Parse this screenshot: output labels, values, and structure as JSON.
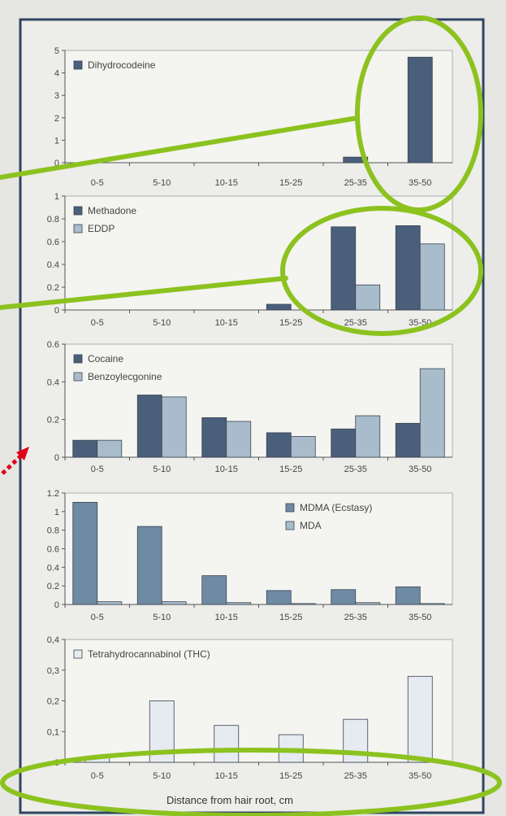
{
  "figure": {
    "xlabel": "Distance from hair root, cm"
  },
  "colors": {
    "page_bg": "#e6e6e2",
    "panel_bg": "#f4f4f1",
    "dark_bar": "#4a5f7a",
    "mid_bar": "#6f8aa3",
    "light_bar": "#a9bccc",
    "thc_bar": "#e6eaf1",
    "highlight": "#8cc21f",
    "arrow": "#e0001a"
  },
  "chart_data": [
    {
      "type": "bar",
      "categories": [
        "0-5",
        "5-10",
        "10-15",
        "15-25",
        "25-35",
        "35-50"
      ],
      "series": [
        {
          "name": "Dihydrocodeine",
          "values": [
            0,
            0,
            0,
            0,
            0.25,
            4.7
          ]
        }
      ],
      "ylim": [
        0,
        5
      ],
      "yticks": [
        "0",
        "1",
        "2",
        "3",
        "4",
        "5"
      ],
      "legend": "top-left",
      "grid": false
    },
    {
      "type": "bar",
      "categories": [
        "0-5",
        "5-10",
        "10-15",
        "15-25",
        "25-35",
        "35-50"
      ],
      "series": [
        {
          "name": "Methadone",
          "values": [
            0,
            0,
            0,
            0.05,
            0.73,
            0.74
          ]
        },
        {
          "name": "EDDP",
          "values": [
            0,
            0,
            0,
            0,
            0.22,
            0.58
          ]
        }
      ],
      "ylim": [
        0,
        1
      ],
      "yticks": [
        "0",
        "0.2",
        "0.4",
        "0.6",
        "0.8",
        "1"
      ],
      "legend": "top-left",
      "grid": false
    },
    {
      "type": "bar",
      "categories": [
        "0-5",
        "5-10",
        "10-15",
        "15-25",
        "25-35",
        "35-50"
      ],
      "series": [
        {
          "name": "Cocaine",
          "values": [
            0.09,
            0.33,
            0.21,
            0.13,
            0.15,
            0.18
          ]
        },
        {
          "name": "Benzoylecgonine",
          "values": [
            0.09,
            0.32,
            0.19,
            0.11,
            0.22,
            0.47
          ]
        }
      ],
      "ylim": [
        0,
        0.6
      ],
      "yticks": [
        "0",
        "0.2",
        "0.4",
        "0.6"
      ],
      "legend": "top-left",
      "grid": false
    },
    {
      "type": "bar",
      "categories": [
        "0-5",
        "5-10",
        "10-15",
        "15-25",
        "25-35",
        "35-50"
      ],
      "series": [
        {
          "name": "MDMA (Ecstasy)",
          "values": [
            1.1,
            0.84,
            0.31,
            0.15,
            0.16,
            0.19
          ]
        },
        {
          "name": "MDA",
          "values": [
            0.03,
            0.03,
            0.02,
            0.01,
            0.02,
            0.01
          ]
        }
      ],
      "ylim": [
        0,
        1.2
      ],
      "yticks": [
        "0",
        "0.2",
        "0.4",
        "0.6",
        "0.8",
        "1",
        "1.2"
      ],
      "legend": "top-right",
      "grid": false
    },
    {
      "type": "bar",
      "categories": [
        "0-5",
        "5-10",
        "10-15",
        "15-25",
        "25-35",
        "35-50"
      ],
      "series": [
        {
          "name": "Tetrahydrocannabinol (THC)",
          "values": [
            0.02,
            0.2,
            0.12,
            0.09,
            0.14,
            0.28
          ]
        }
      ],
      "ylim": [
        0,
        0.4
      ],
      "yticks": [
        "0",
        "0,1",
        "0,2",
        "0,3",
        "0,4"
      ],
      "legend": "top-left",
      "grid": false
    }
  ]
}
